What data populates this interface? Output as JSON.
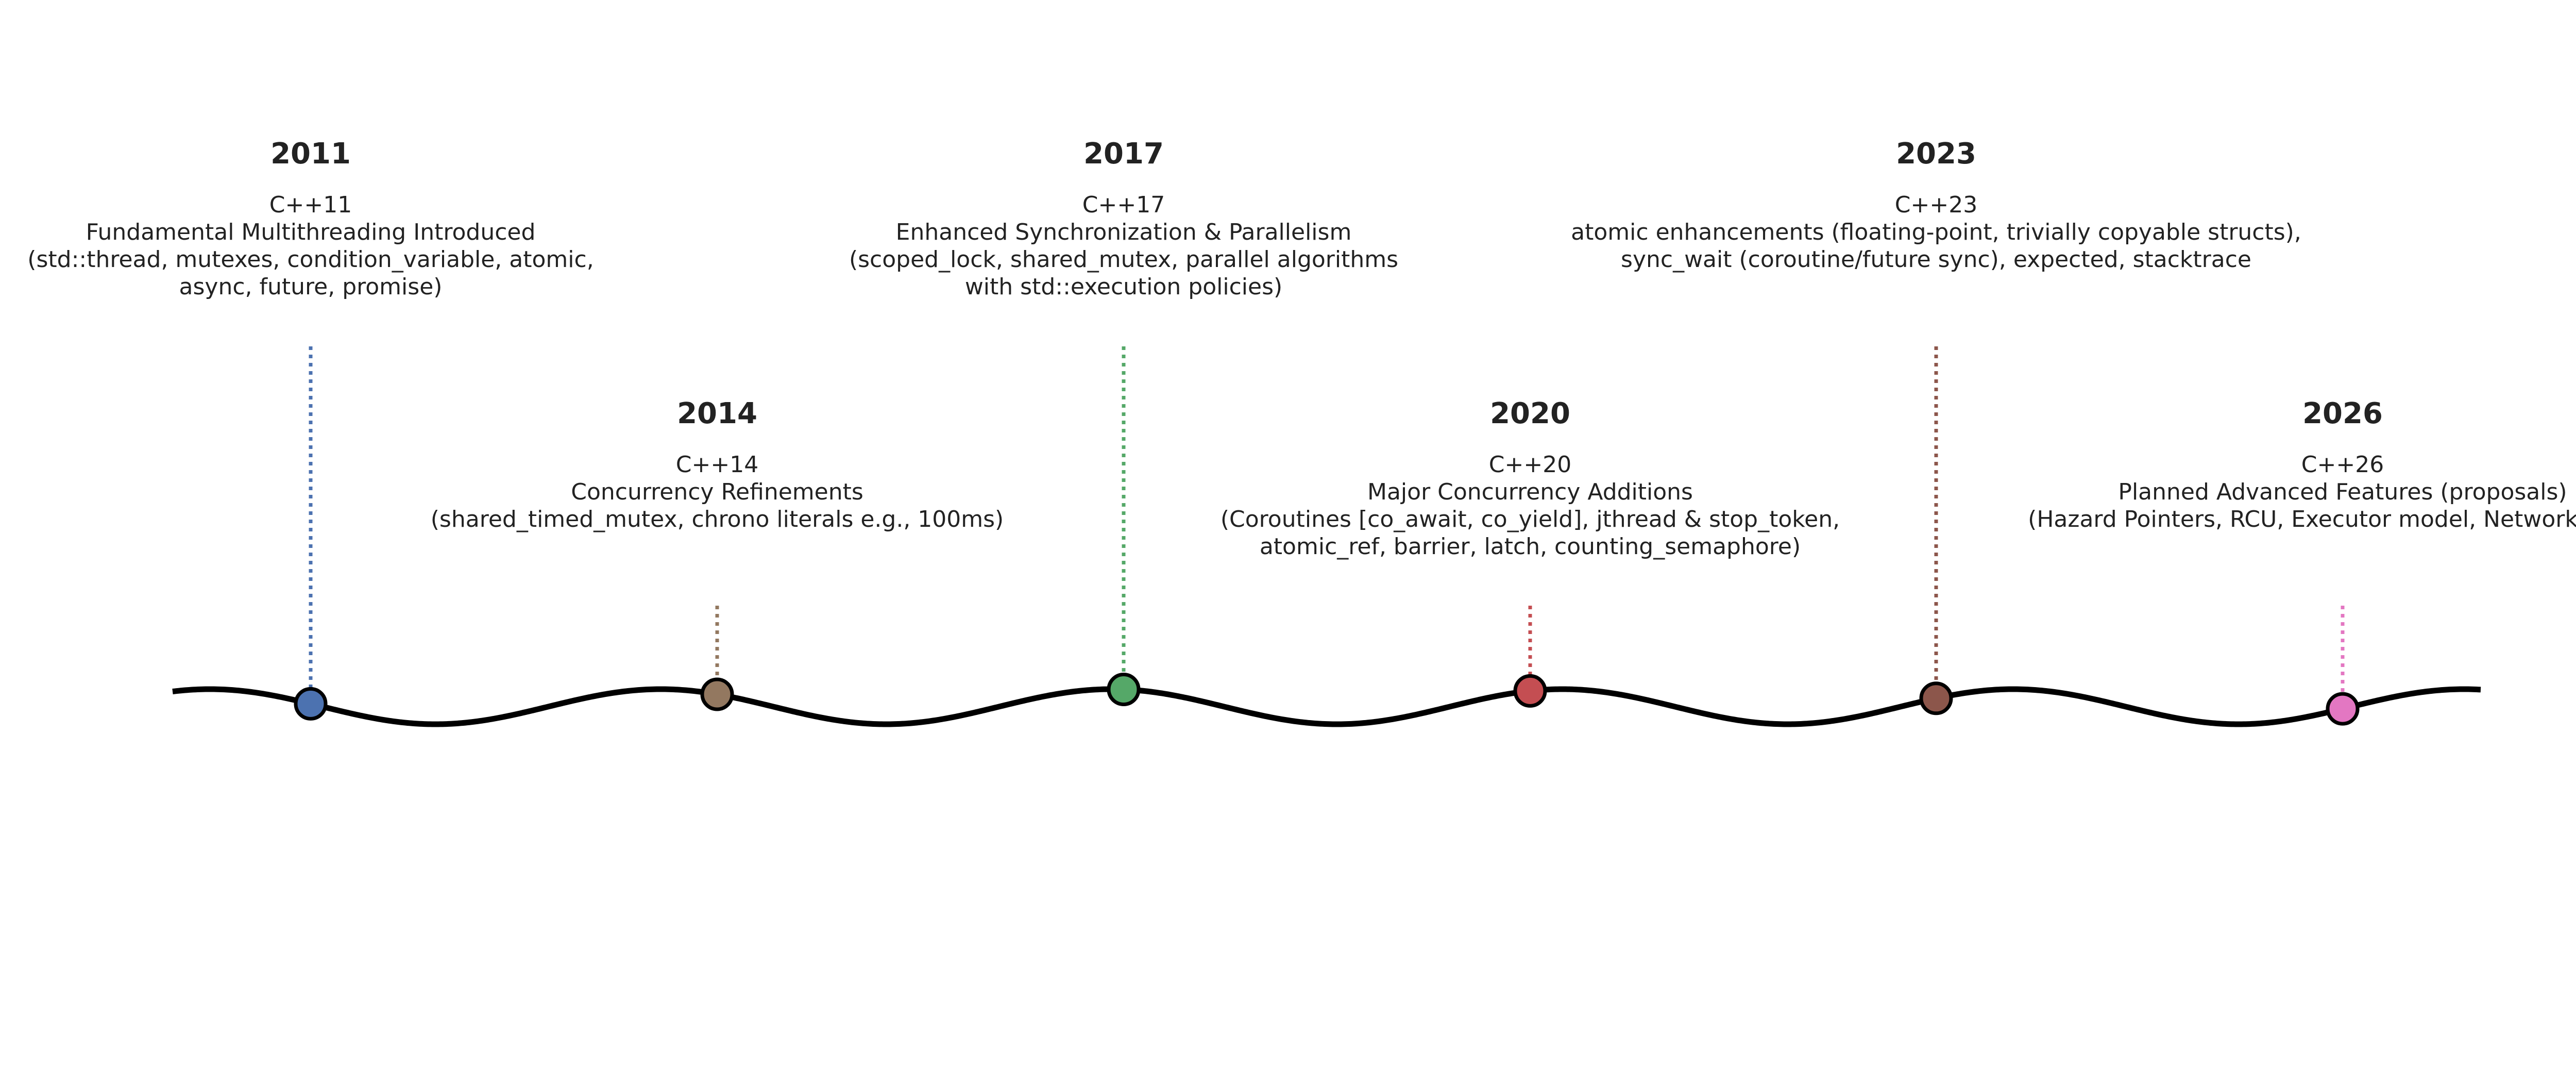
{
  "milestones": [
    {
      "year": "2011",
      "color": "#4c72b0",
      "lines": [
        "C++11",
        "Fundamental Multithreading Introduced",
        "(std::thread, mutexes, condition_variable, atomic,",
        "async, future, promise)"
      ]
    },
    {
      "year": "2014",
      "color": "#937860",
      "lines": [
        "C++14",
        "Concurrency Refinements",
        "(shared_timed_mutex, chrono literals e.g., 100ms)"
      ]
    },
    {
      "year": "2017",
      "color": "#55a868",
      "lines": [
        "C++17",
        "Enhanced Synchronization & Parallelism",
        "(scoped_lock, shared_mutex, parallel algorithms",
        "with std::execution policies)"
      ]
    },
    {
      "year": "2020",
      "color": "#c44e52",
      "lines": [
        "C++20",
        "Major Concurrency Additions",
        "(Coroutines [co_await, co_yield], jthread & stop_token,",
        "atomic_ref, barrier, latch, counting_semaphore)"
      ]
    },
    {
      "year": "2023",
      "color": "#8c564b",
      "lines": [
        "C++23",
        "atomic enhancements (floating-point, trivially copyable structs),",
        "sync_wait (coroutine/future sync), expected, stacktrace"
      ]
    },
    {
      "year": "2026",
      "color": "#e377c2",
      "lines": [
        "C++26",
        "Planned Advanced Features (proposals)",
        "(Hazard Pointers, RCU, Executor model, Networking TS)"
      ]
    }
  ]
}
